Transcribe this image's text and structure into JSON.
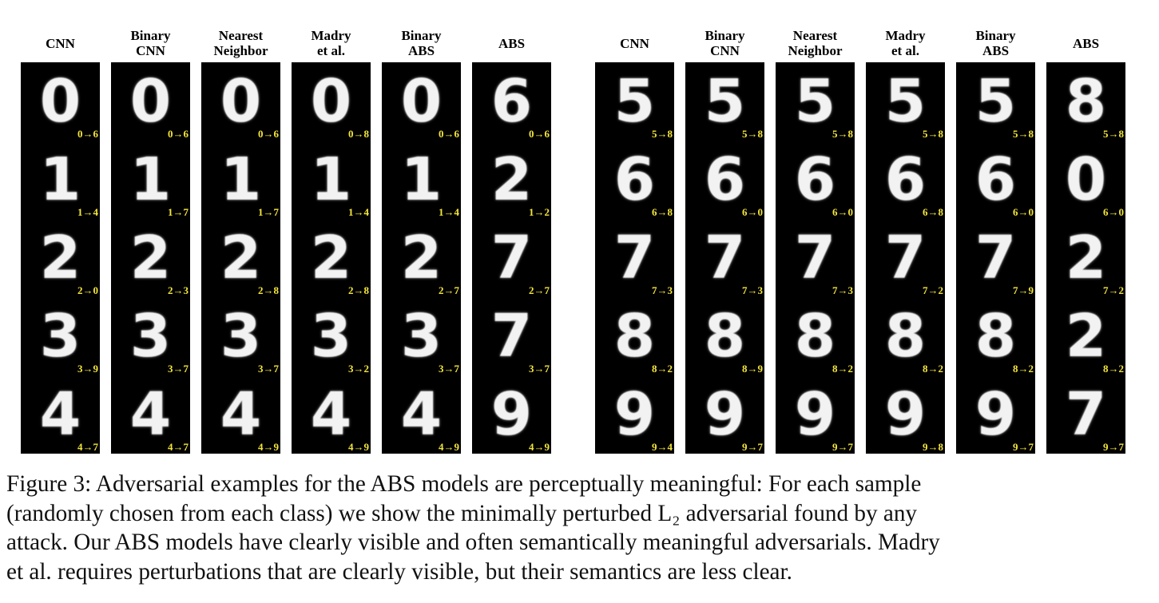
{
  "figure": {
    "groups": [
      {
        "columns": [
          {
            "header": "CNN",
            "cells": [
              {
                "digit": "0",
                "label": "0→6"
              },
              {
                "digit": "1",
                "label": "1→4"
              },
              {
                "digit": "2",
                "label": "2→0"
              },
              {
                "digit": "3",
                "label": "3→9"
              },
              {
                "digit": "4",
                "label": "4→7"
              }
            ]
          },
          {
            "header": "Binary\nCNN",
            "cells": [
              {
                "digit": "0",
                "label": "0→6"
              },
              {
                "digit": "1",
                "label": "1→7"
              },
              {
                "digit": "2",
                "label": "2→3"
              },
              {
                "digit": "3",
                "label": "3→7"
              },
              {
                "digit": "4",
                "label": "4→7"
              }
            ]
          },
          {
            "header": "Nearest\nNeighbor",
            "cells": [
              {
                "digit": "0",
                "label": "0→6"
              },
              {
                "digit": "1",
                "label": "1→7"
              },
              {
                "digit": "2",
                "label": "2→8"
              },
              {
                "digit": "3",
                "label": "3→7"
              },
              {
                "digit": "4",
                "label": "4→9"
              }
            ]
          },
          {
            "header": "Madry\net al.",
            "cells": [
              {
                "digit": "0",
                "label": "0→8"
              },
              {
                "digit": "1",
                "label": "1→4"
              },
              {
                "digit": "2",
                "label": "2→8"
              },
              {
                "digit": "3",
                "label": "3→2"
              },
              {
                "digit": "4",
                "label": "4→9"
              }
            ]
          },
          {
            "header": "Binary\nABS",
            "cells": [
              {
                "digit": "0",
                "label": "0→6"
              },
              {
                "digit": "1",
                "label": "1→4"
              },
              {
                "digit": "2",
                "label": "2→7"
              },
              {
                "digit": "3",
                "label": "3→7"
              },
              {
                "digit": "4",
                "label": "4→9"
              }
            ]
          },
          {
            "header": "ABS",
            "cells": [
              {
                "digit": "6",
                "label": "0→6"
              },
              {
                "digit": "2",
                "label": "1→2"
              },
              {
                "digit": "7",
                "label": "2→7"
              },
              {
                "digit": "7",
                "label": "3→7"
              },
              {
                "digit": "9",
                "label": "4→9"
              }
            ]
          }
        ]
      },
      {
        "columns": [
          {
            "header": "CNN",
            "cells": [
              {
                "digit": "5",
                "label": "5→8"
              },
              {
                "digit": "6",
                "label": "6→8"
              },
              {
                "digit": "7",
                "label": "7→3"
              },
              {
                "digit": "8",
                "label": "8→2"
              },
              {
                "digit": "9",
                "label": "9→4"
              }
            ]
          },
          {
            "header": "Binary\nCNN",
            "cells": [
              {
                "digit": "5",
                "label": "5→8"
              },
              {
                "digit": "6",
                "label": "6→0"
              },
              {
                "digit": "7",
                "label": "7→3"
              },
              {
                "digit": "8",
                "label": "8→9"
              },
              {
                "digit": "9",
                "label": "9→7"
              }
            ]
          },
          {
            "header": "Nearest\nNeighbor",
            "cells": [
              {
                "digit": "5",
                "label": "5→8"
              },
              {
                "digit": "6",
                "label": "6→0"
              },
              {
                "digit": "7",
                "label": "7→3"
              },
              {
                "digit": "8",
                "label": "8→2"
              },
              {
                "digit": "9",
                "label": "9→7"
              }
            ]
          },
          {
            "header": "Madry\net al.",
            "cells": [
              {
                "digit": "5",
                "label": "5→8"
              },
              {
                "digit": "6",
                "label": "6→8"
              },
              {
                "digit": "7",
                "label": "7→2"
              },
              {
                "digit": "8",
                "label": "8→2"
              },
              {
                "digit": "9",
                "label": "9→8"
              }
            ]
          },
          {
            "header": "Binary\nABS",
            "cells": [
              {
                "digit": "5",
                "label": "5→8"
              },
              {
                "digit": "6",
                "label": "6→0"
              },
              {
                "digit": "7",
                "label": "7→9"
              },
              {
                "digit": "8",
                "label": "8→2"
              },
              {
                "digit": "9",
                "label": "9→7"
              }
            ]
          },
          {
            "header": "ABS",
            "cells": [
              {
                "digit": "8",
                "label": "5→8"
              },
              {
                "digit": "0",
                "label": "6→0"
              },
              {
                "digit": "2",
                "label": "7→2"
              },
              {
                "digit": "2",
                "label": "8→2"
              },
              {
                "digit": "7",
                "label": "9→7"
              }
            ]
          }
        ]
      }
    ]
  },
  "caption": {
    "lines": [
      "Figure 3: Adversarial examples for the ABS models are perceptually meaningful: For each sample",
      "(randomly chosen from each class) we show the minimally perturbed L₂ adversarial found by any",
      "attack. Our ABS models have clearly visible and often semantically meaningful adversarials. Madry",
      "et al. requires perturbations that are clearly visible, but their semantics are less clear."
    ]
  }
}
